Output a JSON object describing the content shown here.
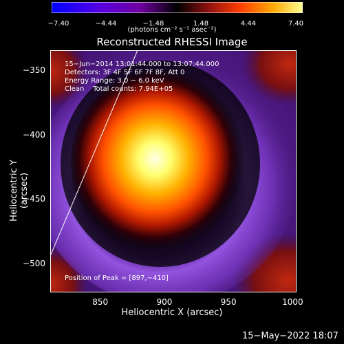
{
  "colorbar": {
    "ticks": [
      "−7.40",
      "−4.44",
      "−1.48",
      "1.48",
      "4.44",
      "7.40"
    ],
    "units": "(photons cm⁻² s⁻¹ asec⁻²)",
    "range": [
      -7.4,
      7.4
    ],
    "colors": [
      "#0000ff",
      "#7b00c8",
      "#4d0060",
      "#000000",
      "#8a1b00",
      "#ff3c00",
      "#ffa500",
      "#ffff80"
    ]
  },
  "image": {
    "title": "Reconstructed RHESSI Image",
    "info": {
      "time": "15−Jun−2014 13:01:44.000 to 13:07:44.000",
      "detectors": "Detectors: 3F 4F 5F 6F 7F 8F, Att 0",
      "energy": "Energy Range: 3.0 − 6.0 keV",
      "method": "Clean",
      "counts": "Total counts: 7.94E+05"
    },
    "peak": "Position of Peak = [897,−410]"
  },
  "axes": {
    "xlabel": "Heliocentric X (arcsec)",
    "ylabel": "Heliocentric Y (arcsec)",
    "xticks": [
      "850",
      "900",
      "950",
      "1000"
    ],
    "yticks": [
      "−350",
      "−400",
      "−450",
      "−500"
    ],
    "xrange": [
      811,
      1003
    ],
    "yrange": [
      -522,
      -334
    ]
  },
  "footer": {
    "date": "15−May−2022 18:07"
  }
}
